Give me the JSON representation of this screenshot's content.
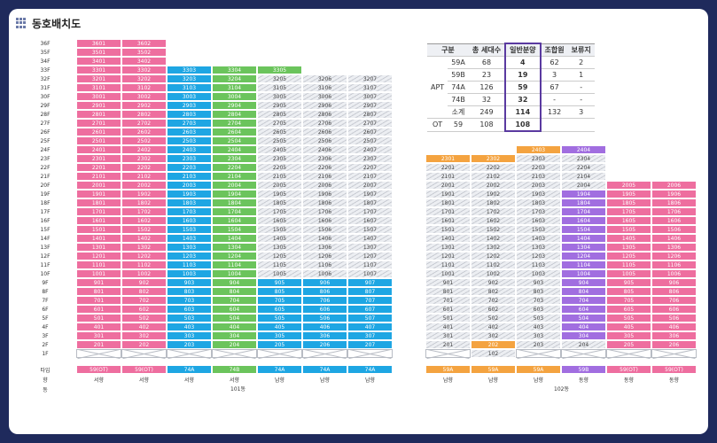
{
  "title": "동호배치도",
  "floors_left": [
    "36F",
    "35F",
    "34F",
    "33F",
    "32F",
    "31F",
    "30F",
    "29F",
    "28F",
    "27F",
    "26F",
    "25F",
    "24F",
    "23F",
    "22F",
    "21F",
    "20F",
    "19F",
    "18F",
    "17F",
    "16F",
    "15F",
    "14F",
    "13F",
    "12F",
    "11F",
    "10F",
    "9F",
    "8F",
    "7F",
    "6F",
    "5F",
    "4F",
    "3F",
    "2F",
    "1F"
  ],
  "bottom_labels": [
    "타입",
    "향",
    "동"
  ],
  "bldg101": {
    "types": [
      "59(OT)",
      "59(OT)",
      "74A",
      "74B",
      "74A",
      "74A",
      "74A"
    ],
    "facing": [
      "서향",
      "서향",
      "서향",
      "서향",
      "남향",
      "남향",
      "남향"
    ],
    "name": "101동"
  },
  "bldg102": {
    "types": [
      "59A",
      "59A",
      "59A",
      "59B",
      "59(OT)",
      "59(OT)"
    ],
    "facing": [
      "남향",
      "남향",
      "남향",
      "동향",
      "동향",
      "동향"
    ],
    "name": "102동"
  },
  "summary": {
    "headers": [
      "구분",
      "",
      "총 세대수",
      "일반분양",
      "조합원",
      "보류지"
    ],
    "rows": [
      [
        "APT",
        "59A",
        "68",
        "4",
        "62",
        "2"
      ],
      [
        "",
        "59B",
        "23",
        "19",
        "3",
        "1"
      ],
      [
        "",
        "74A",
        "126",
        "59",
        "67",
        "-"
      ],
      [
        "",
        "74B",
        "32",
        "32",
        "-",
        "-"
      ],
      [
        "",
        "소계",
        "249",
        "114",
        "132",
        "3"
      ],
      [
        "OT",
        "59",
        "108",
        "108",
        "",
        ""
      ]
    ]
  }
}
